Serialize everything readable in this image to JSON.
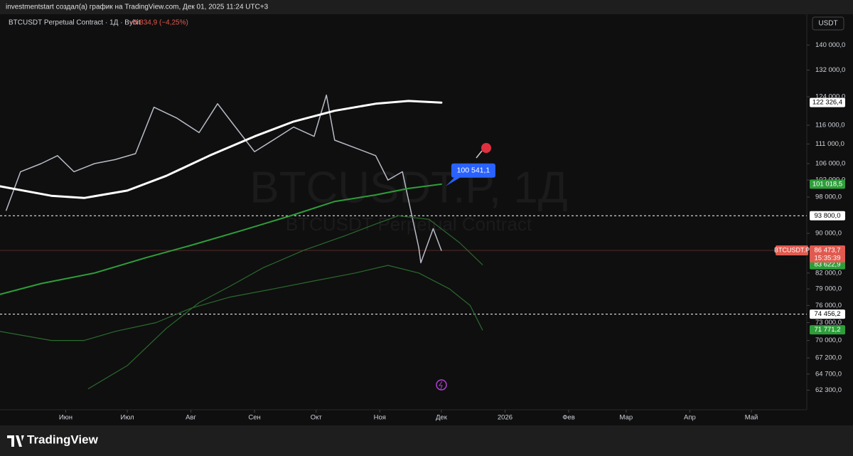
{
  "header": {
    "text": "investmentstart создал(а) график на TradingView.com, Дек 01, 2025 11:24 UTC+3"
  },
  "footer": {
    "brand": "TradingView"
  },
  "chart_data": {
    "type": "line",
    "title": "BTCUSDT Perpetual Contract · 1Д · Bybit",
    "change": "−3 834,9 (−4,25%)",
    "currency": "USDT",
    "watermark": "BTCUSDT.P, 1Д",
    "watermark_subtitle": "BTCUSDT Perpetual Contract",
    "log_scale": true,
    "xlim": [
      "2025-04-30",
      "2026-05-28"
    ],
    "xticks": [
      {
        "value": "2025-06-01",
        "label": "Июн"
      },
      {
        "value": "2025-07-01",
        "label": "Июл"
      },
      {
        "value": "2025-08-01",
        "label": "Авг"
      },
      {
        "value": "2025-09-01",
        "label": "Сен"
      },
      {
        "value": "2025-10-01",
        "label": "Окт"
      },
      {
        "value": "2025-11-01",
        "label": "Ноя"
      },
      {
        "value": "2025-12-01",
        "label": "Дек"
      },
      {
        "value": "2026-01-01",
        "label": "2026"
      },
      {
        "value": "2026-02-01",
        "label": "Фев"
      },
      {
        "value": "2026-03-01",
        "label": "Мар"
      },
      {
        "value": "2026-04-01",
        "label": "Апр"
      },
      {
        "value": "2026-05-01",
        "label": "Май"
      }
    ],
    "ylim": [
      59500,
      150500
    ],
    "yticks": [
      {
        "value": 140000,
        "label": "140 000,0"
      },
      {
        "value": 132000,
        "label": "132 000,0"
      },
      {
        "value": 124000,
        "label": "124 000,0"
      },
      {
        "value": 116000,
        "label": "116 000,0"
      },
      {
        "value": 111000,
        "label": "111 000,0"
      },
      {
        "value": 106000,
        "label": "106 000,0"
      },
      {
        "value": 102000,
        "label": "102 000,0"
      },
      {
        "value": 98000,
        "label": "98 000,0"
      },
      {
        "value": 90000,
        "label": "90 000,0"
      },
      {
        "value": 82000,
        "label": "82 000,0"
      },
      {
        "value": 79000,
        "label": "79 000,0"
      },
      {
        "value": 76000,
        "label": "76 000,0"
      },
      {
        "value": 73000,
        "label": "73 000,0"
      },
      {
        "value": 70000,
        "label": "70 000,0"
      },
      {
        "value": 67200,
        "label": "67 200,0"
      },
      {
        "value": 64700,
        "label": "64 700,0"
      },
      {
        "value": 62300,
        "label": "62 300,0"
      }
    ],
    "series": [
      {
        "color": "#b8bcc6",
        "width": 1.5,
        "x": [
          "2025-05-03",
          "2025-05-10",
          "2025-05-20",
          "2025-05-28",
          "2025-06-05",
          "2025-06-15",
          "2025-06-25",
          "2025-07-05",
          "2025-07-14",
          "2025-07-25",
          "2025-08-05",
          "2025-08-14",
          "2025-08-22",
          "2025-09-01",
          "2025-09-10",
          "2025-09-20",
          "2025-09-30",
          "2025-10-06",
          "2025-10-10",
          "2025-10-20",
          "2025-10-30",
          "2025-11-05",
          "2025-11-12",
          "2025-11-20",
          "2025-11-21",
          "2025-11-27",
          "2025-12-01"
        ],
        "values": [
          95000,
          104000,
          106000,
          108000,
          104000,
          106000,
          107000,
          108500,
          121000,
          118000,
          114000,
          122000,
          116000,
          109000,
          112000,
          115500,
          113000,
          124500,
          112000,
          110000,
          108000,
          102000,
          104000,
          87000,
          84000,
          91000,
          86473.7
        ]
      },
      {
        "color": "#ffffff",
        "width": 3,
        "x": [
          "2025-04-30",
          "2025-05-25",
          "2025-06-10",
          "2025-07-01",
          "2025-07-20",
          "2025-08-10",
          "2025-09-01",
          "2025-09-20",
          "2025-10-10",
          "2025-10-30",
          "2025-11-15",
          "2025-12-01"
        ],
        "values": [
          100500,
          98300,
          97800,
          99500,
          103000,
          108000,
          113000,
          117000,
          120000,
          122000,
          122800,
          122326.4
        ]
      },
      {
        "color": "#2e9e3a",
        "width": 2,
        "x": [
          "2025-04-30",
          "2025-05-20",
          "2025-06-15",
          "2025-07-10",
          "2025-08-01",
          "2025-08-25",
          "2025-09-20",
          "2025-10-10",
          "2025-10-30",
          "2025-11-15",
          "2025-12-01"
        ],
        "values": [
          78000,
          80000,
          82000,
          85000,
          87500,
          90500,
          94000,
          97000,
          98500,
          100000,
          101018.5
        ]
      },
      {
        "color": "#2a6a2f",
        "width": 1.2,
        "x": [
          "2025-06-12",
          "2025-07-01",
          "2025-07-20",
          "2025-08-05",
          "2025-08-20",
          "2025-09-05",
          "2025-09-25",
          "2025-10-15",
          "2025-10-30",
          "2025-11-10",
          "2025-11-25",
          "2025-12-10",
          "2025-12-21"
        ],
        "values": [
          62500,
          66000,
          72000,
          76500,
          79500,
          83000,
          86500,
          89500,
          92000,
          93800,
          93000,
          88000,
          83622.9
        ]
      },
      {
        "color": "#2a6a2f",
        "width": 1.2,
        "x": [
          "2025-04-30",
          "2025-05-25",
          "2025-06-10",
          "2025-06-25",
          "2025-07-15",
          "2025-08-01",
          "2025-08-20",
          "2025-09-10",
          "2025-09-30",
          "2025-10-20",
          "2025-11-05",
          "2025-11-20",
          "2025-12-05",
          "2025-12-15",
          "2025-12-21"
        ],
        "values": [
          71500,
          70000,
          70000,
          71500,
          73000,
          75500,
          77500,
          79000,
          80500,
          82000,
          83500,
          82000,
          79000,
          76000,
          71771.2
        ]
      }
    ],
    "levels": [
      {
        "value": 93800,
        "label": "93 800,0",
        "color": "#ffffff"
      },
      {
        "value": 74456.2,
        "label": "74 456,2",
        "color": "#ffffff"
      }
    ],
    "price_labels": [
      {
        "value": 122326.4,
        "label": "122 326,4",
        "color": "#ffffff"
      },
      {
        "value": 101018.5,
        "label": "101 018,5",
        "color": "#2e9e3a"
      },
      {
        "value": 83622.9,
        "label": "83 622,9",
        "color": "#2e9e3a"
      },
      {
        "value": 71771.2,
        "label": "71 771,2",
        "color": "#2e9e3a"
      }
    ],
    "last_price": {
      "value": 86473.7,
      "label": "86 473,7",
      "symbol": "BTCUSDT.P",
      "countdown": "15:35:39",
      "color": "#e05a4f"
    },
    "annotation": {
      "value": 100541.1,
      "label": "100 541,1",
      "color": "#2962ff"
    }
  }
}
